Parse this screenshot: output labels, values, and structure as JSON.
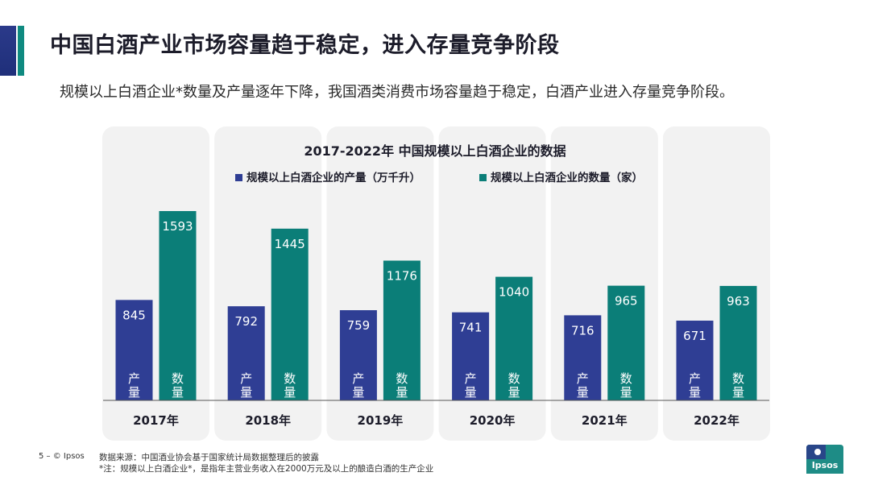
{
  "slide": {
    "title": "中国白酒产业市场容量趋于稳定，进入存量竞争阶段",
    "subtitle": "规模以上白酒企业*数量及产量逐年下降，我国酒类消费市场容量趋于稳定，白酒产业进入存量竞争阶段。",
    "page_number": "5 –",
    "copyright": "© Ipsos",
    "source_line": "数据来源：中国酒业协会基于国家统计局数据整理后的披露",
    "note_line": "*注：规模以上白酒企业*，是指年主营业务收入在2000万元及以上的酿造白酒的生产企业",
    "logo_text": "Ipsos"
  },
  "chart_data": {
    "type": "bar",
    "title": "2017-2022年 中国规模以上白酒企业的数据",
    "categories": [
      "2017年",
      "2018年",
      "2019年",
      "2020年",
      "2021年",
      "2022年"
    ],
    "series": [
      {
        "name": "规模以上白酒企业的产量（万千升）",
        "short_label": "产量",
        "color": "#2f3e94",
        "values": [
          845,
          792,
          759,
          741,
          716,
          671
        ]
      },
      {
        "name": "规模以上白酒企业的数量（家）",
        "short_label": "数量",
        "color": "#0b7e78",
        "values": [
          1593,
          1445,
          1176,
          1040,
          965,
          963
        ]
      }
    ],
    "legend_position": "top",
    "grid": false
  }
}
